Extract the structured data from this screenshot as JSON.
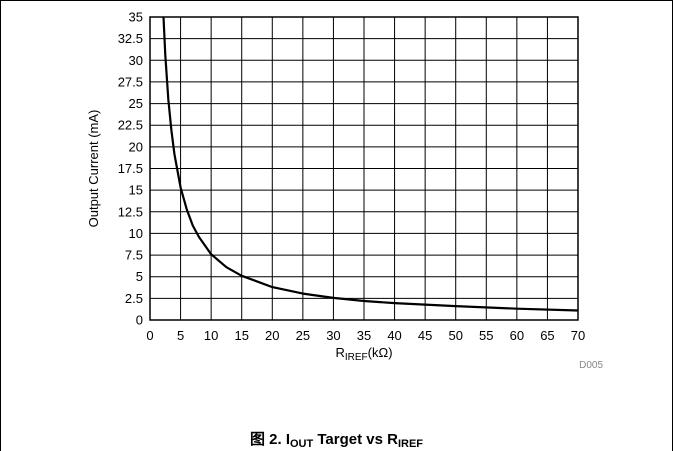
{
  "chart_data": {
    "type": "line",
    "xlabel": {
      "main": "R",
      "sub": "IREF",
      "suffix": "(kΩ)"
    },
    "ylabel": "Output Current (mA)",
    "xlim": [
      0,
      70
    ],
    "ylim": [
      0,
      35
    ],
    "xticks": [
      "0",
      "5",
      "10",
      "15",
      "20",
      "25",
      "30",
      "35",
      "40",
      "45",
      "50",
      "55",
      "60",
      "65",
      "70"
    ],
    "yticks": [
      "0",
      "2.5",
      "5",
      "7.5",
      "10",
      "12.5",
      "15",
      "17.5",
      "20",
      "22.5",
      "25",
      "27.5",
      "30",
      "32.5",
      "35"
    ],
    "grid": true,
    "series": [
      {
        "x": [
          2.2,
          2.5,
          3,
          3.5,
          4,
          5,
          6,
          7,
          8,
          10,
          12.5,
          15,
          20,
          25,
          30,
          35,
          40,
          50,
          60,
          70
        ],
        "y": [
          35,
          30.6,
          25.5,
          21.9,
          19.1,
          15.3,
          12.8,
          10.9,
          9.6,
          7.6,
          6.1,
          5.1,
          3.8,
          3.05,
          2.55,
          2.2,
          1.95,
          1.6,
          1.3,
          1.1
        ]
      }
    ]
  },
  "figure_id": "D005",
  "caption": {
    "prefix": "图 2. I",
    "sub1": "OUT",
    "middle": " Target vs R",
    "sub2": "IREF"
  }
}
